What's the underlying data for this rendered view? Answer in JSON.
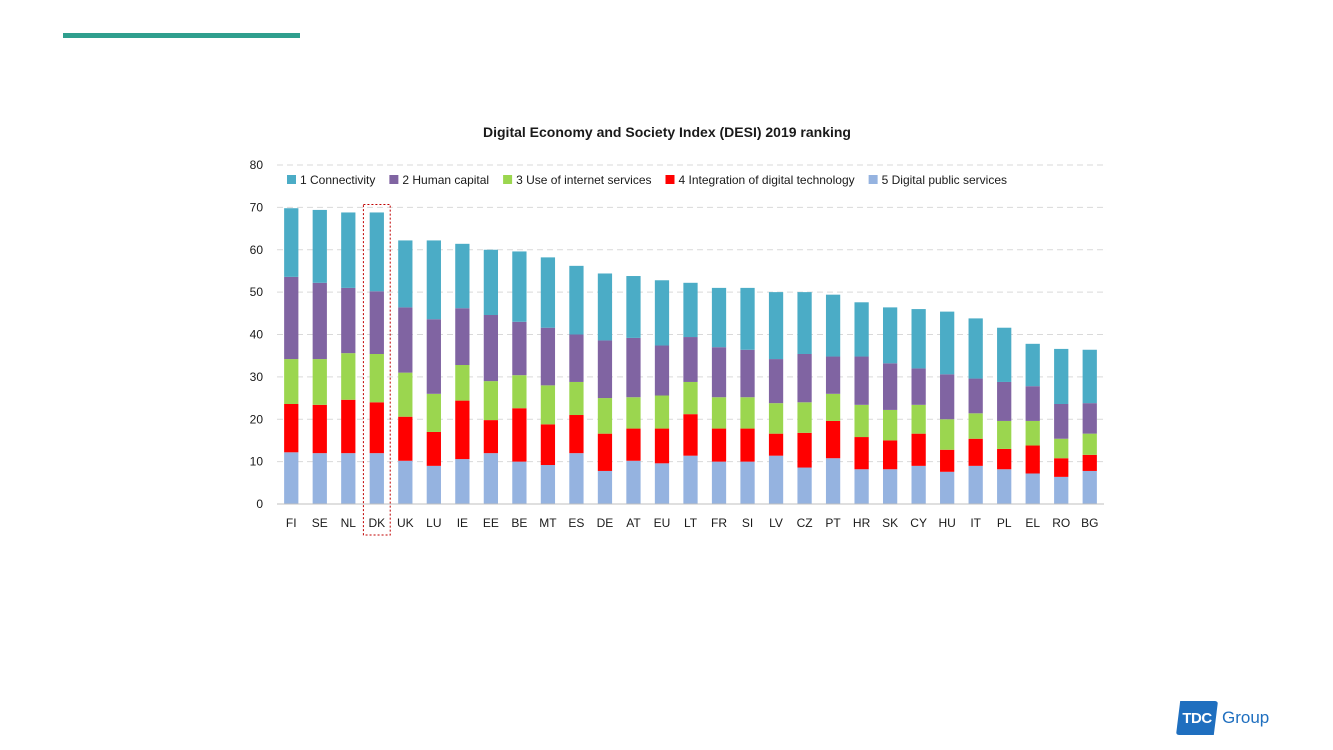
{
  "colors": {
    "accent": "#2f9f8e",
    "connectivity": "#4bacc6",
    "human_capital": "#8064a2",
    "internet_services": "#9bd64f",
    "digital_technology": "#ff0000",
    "public_services": "#95b3e0",
    "grid": "#d9d9d9",
    "highlight": "#c00000",
    "brand": "#1f6fbf"
  },
  "logo": {
    "badge": "TDC",
    "text": "Group"
  },
  "chart_data": {
    "type": "bar",
    "stacked": true,
    "title": "Digital Economy and Society Index  (DESI) 2019 ranking",
    "xlabel": "",
    "ylabel": "",
    "ylim": [
      0,
      80
    ],
    "yticks": [
      0,
      10,
      20,
      30,
      40,
      50,
      60,
      70,
      80
    ],
    "grid": true,
    "legend_position": "top",
    "highlight_category": "DK",
    "categories": [
      "FI",
      "SE",
      "NL",
      "DK",
      "UK",
      "LU",
      "IE",
      "EE",
      "BE",
      "MT",
      "ES",
      "DE",
      "AT",
      "EU",
      "LT",
      "FR",
      "SI",
      "LV",
      "CZ",
      "PT",
      "HR",
      "SK",
      "CY",
      "HU",
      "IT",
      "PL",
      "EL",
      "RO",
      "BG"
    ],
    "series": [
      {
        "name": "5 Digital public services",
        "color_key": "public_services",
        "values": [
          12.2,
          12.0,
          12.0,
          12.0,
          10.2,
          9.0,
          10.6,
          12.0,
          10.0,
          9.2,
          12.0,
          7.8,
          10.2,
          9.6,
          11.4,
          10.0,
          10.0,
          11.4,
          8.6,
          10.8,
          8.2,
          8.2,
          9.0,
          7.6,
          9.0,
          8.2,
          7.2,
          6.4,
          7.8
        ]
      },
      {
        "name": "4 Integration of digital technology",
        "color_key": "digital_technology",
        "values": [
          11.4,
          11.4,
          12.6,
          12.0,
          10.4,
          8.0,
          13.8,
          7.8,
          12.6,
          9.6,
          9.0,
          8.8,
          7.6,
          8.2,
          9.8,
          7.8,
          7.8,
          5.2,
          8.2,
          8.8,
          7.6,
          6.8,
          7.6,
          5.2,
          6.4,
          4.8,
          6.6,
          4.4,
          3.8
        ]
      },
      {
        "name": "3 Use of internet services",
        "color_key": "internet_services",
        "values": [
          10.6,
          10.8,
          11.0,
          11.4,
          10.4,
          9.0,
          8.4,
          9.2,
          7.8,
          9.2,
          7.8,
          8.4,
          7.4,
          7.8,
          7.6,
          7.4,
          7.4,
          7.2,
          7.2,
          6.4,
          7.6,
          7.2,
          6.8,
          7.2,
          6.0,
          6.6,
          5.8,
          4.6,
          5.0
        ]
      },
      {
        "name": "2 Human capital",
        "color_key": "human_capital",
        "values": [
          19.4,
          18.0,
          15.4,
          14.8,
          15.4,
          17.6,
          13.4,
          15.6,
          12.6,
          13.6,
          11.2,
          13.6,
          14.0,
          11.8,
          10.6,
          11.8,
          11.2,
          10.4,
          11.4,
          8.8,
          11.4,
          11.0,
          8.6,
          10.6,
          8.2,
          9.2,
          8.2,
          8.2,
          7.2
        ]
      },
      {
        "name": "1 Connectivity",
        "color_key": "connectivity",
        "values": [
          16.2,
          17.2,
          17.8,
          18.6,
          15.8,
          18.6,
          15.2,
          15.4,
          16.6,
          16.6,
          16.2,
          15.8,
          14.6,
          15.4,
          12.8,
          14.0,
          14.6,
          15.8,
          14.6,
          14.6,
          12.8,
          13.2,
          14.0,
          14.8,
          14.2,
          12.8,
          10.0,
          13.0,
          12.6
        ]
      }
    ],
    "legend_order": [
      "1 Connectivity",
      "2 Human capital",
      "3 Use of internet services",
      "4 Integration of digital technology",
      "5 Digital public services"
    ]
  }
}
